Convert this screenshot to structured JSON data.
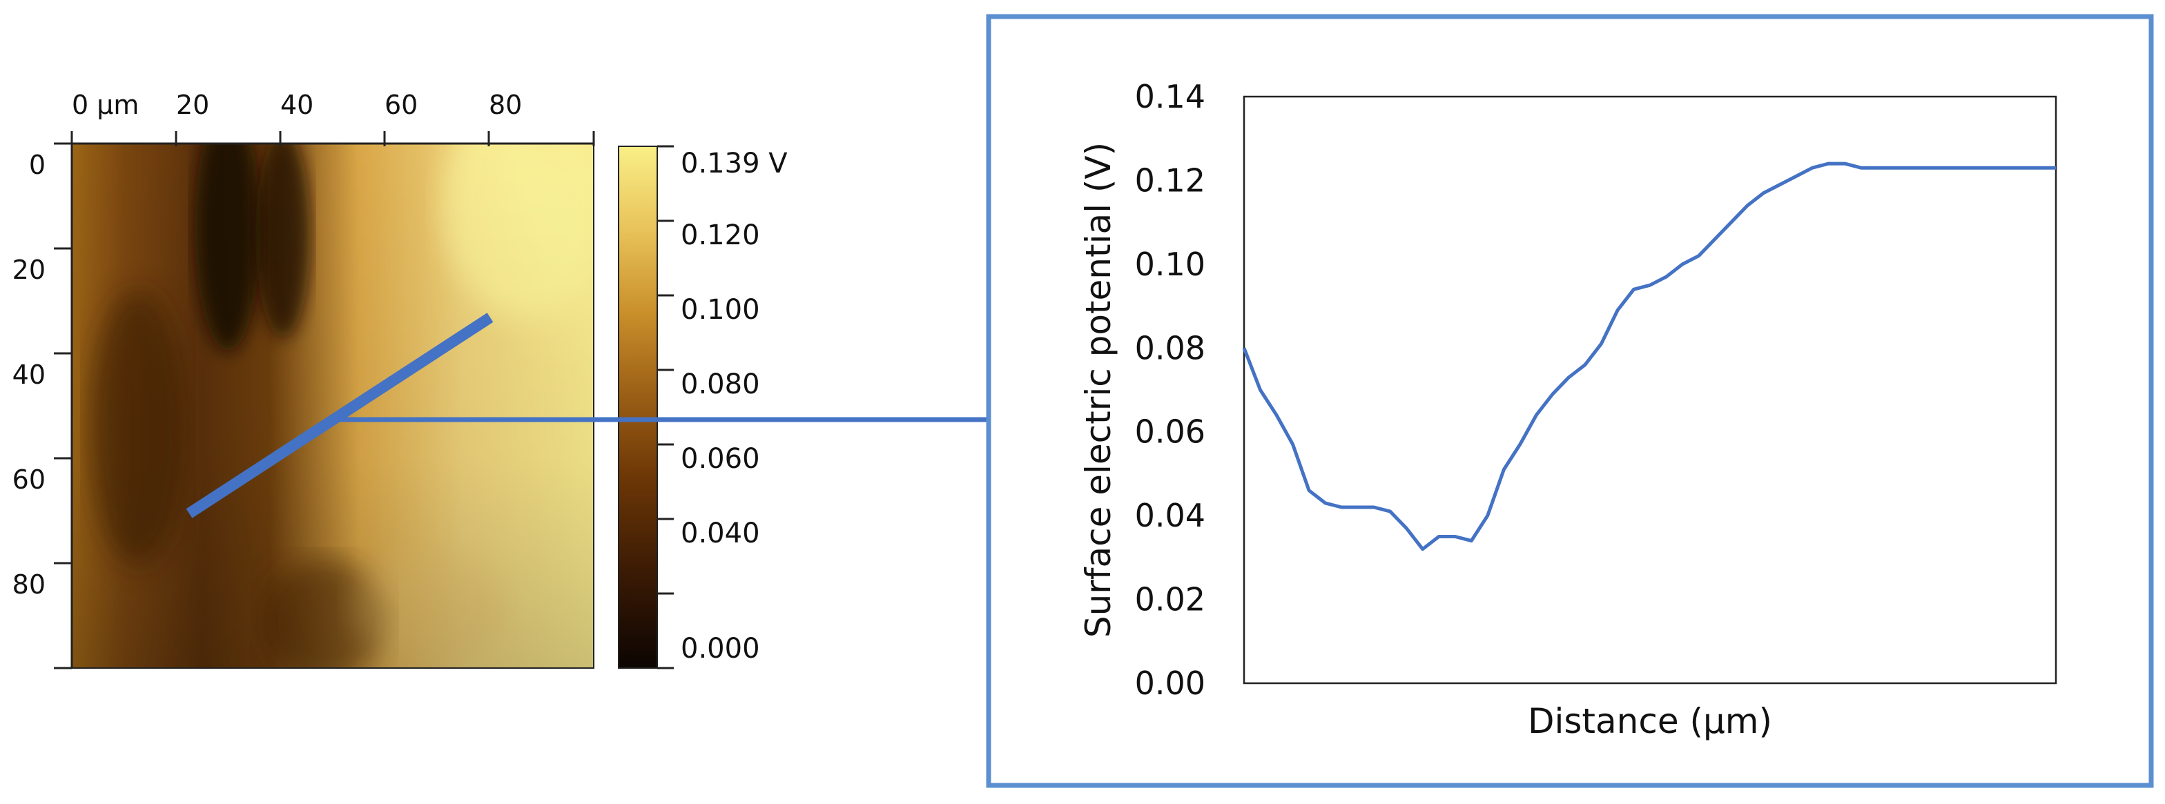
{
  "map": {
    "x_ticks": [
      "0 µm",
      "20",
      "40",
      "60",
      "80"
    ],
    "y_ticks": [
      "0",
      "20",
      "40",
      "60",
      "80"
    ],
    "colorbar": {
      "labels": [
        "0.139 V",
        "0.120",
        "0.100",
        "0.080",
        "0.060",
        "0.040",
        "0.000"
      ],
      "range": [
        0.0,
        0.139
      ],
      "colors": [
        "#f9ef86",
        "#e8c35a",
        "#c98f2a",
        "#9a5e15",
        "#6b3606",
        "#3a1a04",
        "#0c0502"
      ]
    },
    "line_color": "#4472c4"
  },
  "chart_data": {
    "type": "line",
    "title": "",
    "xlabel": "Distance (µm)",
    "ylabel": "Surface electric potential (V)",
    "ylim": [
      0,
      0.14
    ],
    "y_ticks": [
      "0.00",
      "0.02",
      "0.04",
      "0.06",
      "0.08",
      "0.10",
      "0.12",
      "0.14"
    ],
    "grid": false,
    "line_color": "#4472c4",
    "series": [
      {
        "x": [
          0,
          2,
          4,
          6,
          8,
          10,
          12,
          14,
          16,
          18,
          20,
          22,
          24,
          26,
          28,
          30,
          32,
          34,
          36,
          38,
          40,
          42,
          44,
          46,
          48,
          50,
          52,
          54,
          56,
          58,
          60,
          62,
          64,
          66,
          68,
          70,
          72,
          74,
          76,
          78,
          80,
          82,
          84,
          86,
          88,
          90,
          92,
          94,
          96,
          98,
          100
        ],
        "values": [
          0.08,
          0.07,
          0.064,
          0.057,
          0.046,
          0.043,
          0.042,
          0.042,
          0.042,
          0.041,
          0.037,
          0.032,
          0.035,
          0.035,
          0.034,
          0.04,
          0.051,
          0.057,
          0.064,
          0.069,
          0.073,
          0.076,
          0.081,
          0.089,
          0.094,
          0.095,
          0.097,
          0.1,
          0.102,
          0.106,
          0.11,
          0.114,
          0.117,
          0.119,
          0.121,
          0.123,
          0.124,
          0.124,
          0.123,
          0.123,
          0.123,
          0.123,
          0.123,
          0.123,
          0.123,
          0.123,
          0.123,
          0.123,
          0.123,
          0.123,
          0.123
        ]
      }
    ]
  }
}
